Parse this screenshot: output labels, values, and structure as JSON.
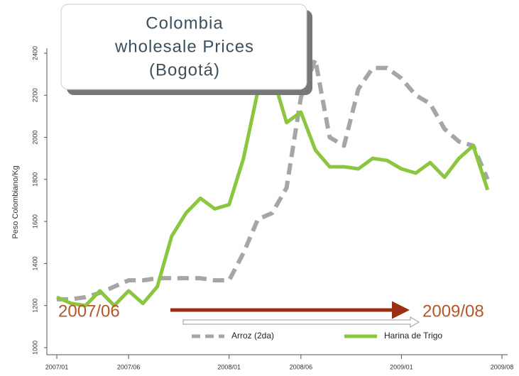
{
  "chart_data": {
    "type": "line",
    "title": [
      "Colombia",
      "wholesale Prices",
      "(Bogotá)"
    ],
    "y_label": "Peso Colombiano/Kg",
    "x": [
      "2007/01",
      "2007/02",
      "2007/03",
      "2007/04",
      "2007/05",
      "2007/06",
      "2007/07",
      "2007/08",
      "2007/09",
      "2007/10",
      "2007/11",
      "2007/12",
      "2008/01",
      "2008/02",
      "2008/03",
      "2008/04",
      "2008/05",
      "2008/06",
      "2008/07",
      "2008/08",
      "2008/09",
      "2008/10",
      "2008/11",
      "2008/12",
      "2009/01",
      "2009/02",
      "2009/03",
      "2009/04",
      "2009/05",
      "2009/06",
      "2009/07"
    ],
    "series": [
      {
        "name": "Arroz (2da)",
        "color": "#a6a6a6",
        "dashed": true,
        "values": [
          1230,
          1230,
          1240,
          1260,
          1290,
          1320,
          1320,
          1330,
          1330,
          1330,
          1330,
          1320,
          1320,
          1450,
          1610,
          1640,
          1760,
          2190,
          2370,
          2000,
          1960,
          2230,
          2330,
          2330,
          2280,
          2200,
          2160,
          2040,
          1980,
          1960,
          1800
        ]
      },
      {
        "name": "Harina de Trigo",
        "color": "#8cc63f",
        "dashed": false,
        "values": [
          1240,
          1210,
          1200,
          1270,
          1200,
          1270,
          1210,
          1290,
          1530,
          1640,
          1710,
          1660,
          1680,
          1900,
          2220,
          2300,
          2070,
          2120,
          1940,
          1860,
          1860,
          1850,
          1900,
          1890,
          1850,
          1830,
          1880,
          1810,
          1900,
          1960,
          1750
        ]
      }
    ],
    "ylim": [
      1000,
      2400
    ],
    "yticks": [
      1000,
      1200,
      1400,
      1600,
      1800,
      2000,
      2200,
      2400
    ],
    "xlim": [
      "2007/01",
      "2009/08"
    ],
    "xticks": [
      "2007/01",
      "2007/06",
      "2008/01",
      "2008/06",
      "2009/01",
      "2009/08"
    ],
    "annotations": [
      "2007/06",
      "2009/08"
    ]
  }
}
